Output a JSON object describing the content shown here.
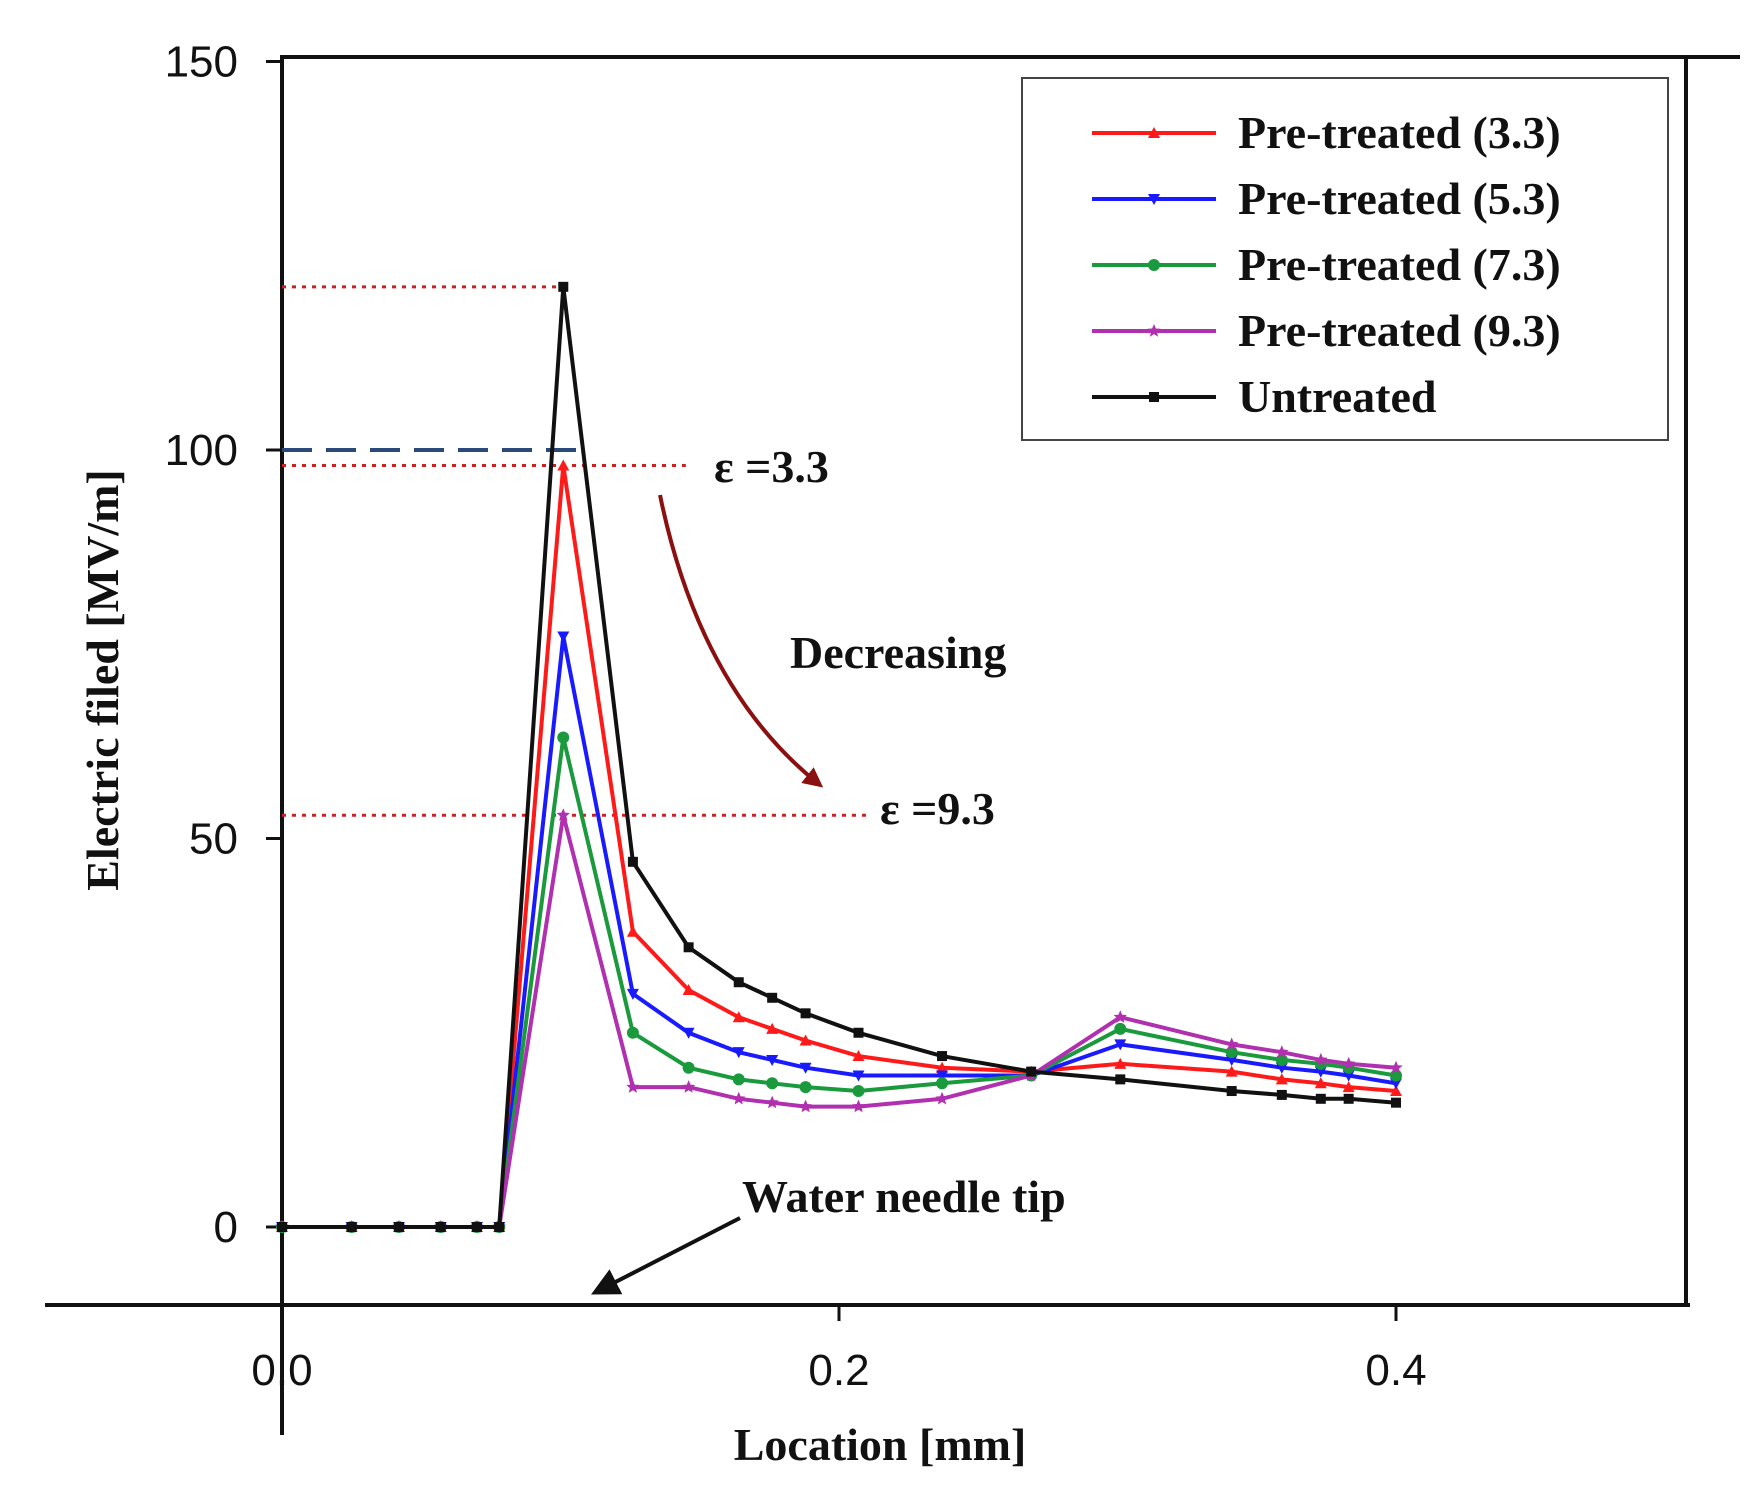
{
  "chart_data": {
    "type": "line",
    "xlabel": "Location [mm]",
    "ylabel": "Electric filed [MV/m]",
    "xlim": [
      -0.025,
      0.5
    ],
    "ylim": [
      -10,
      150
    ],
    "xticks": [
      0.0,
      0.2,
      0.4
    ],
    "xtick_labels": [
      "0.0",
      "0.2",
      "0.4"
    ],
    "yticks": [
      0,
      50,
      100,
      150
    ],
    "ytick_labels": [
      "0",
      "50",
      "100",
      "150"
    ],
    "grid": false,
    "legend_position": "top-right",
    "x": [
      0.0,
      0.025,
      0.042,
      0.057,
      0.07,
      0.078,
      0.101,
      0.126,
      0.146,
      0.164,
      0.176,
      0.188,
      0.207,
      0.237,
      0.269,
      0.301,
      0.341,
      0.359,
      0.373,
      0.383,
      0.4
    ],
    "series": [
      {
        "name": "Pre-treated (3.3)",
        "color": "#ff1a1a",
        "marker": "triangle-up",
        "values": [
          0,
          0,
          0,
          0,
          0,
          0,
          98,
          38,
          30.5,
          27,
          25.5,
          24,
          22,
          20.5,
          20,
          21,
          20,
          19,
          18.5,
          18,
          17.5
        ]
      },
      {
        "name": "Pre-treated (5.3)",
        "color": "#1a1aff",
        "marker": "triangle-down",
        "values": [
          0,
          0,
          0,
          0,
          0,
          0,
          76,
          30,
          25,
          22.5,
          21.5,
          20.5,
          19.5,
          19.5,
          19.5,
          23.5,
          21.5,
          20.5,
          20,
          19.5,
          18.5
        ]
      },
      {
        "name": "Pre-treated (7.3)",
        "color": "#1a9a3c",
        "marker": "circle",
        "values": [
          0,
          0,
          0,
          0,
          0,
          0,
          63,
          25,
          20.5,
          19,
          18.5,
          18,
          17.5,
          18.5,
          19.5,
          25.5,
          22.5,
          21.5,
          21,
          20.5,
          19.5
        ]
      },
      {
        "name": "Pre-treated (9.3)",
        "color": "#b030b0",
        "marker": "star",
        "values": [
          0,
          0,
          0,
          0,
          0,
          0,
          53,
          18,
          18,
          16.5,
          16,
          15.5,
          15.5,
          16.5,
          19.5,
          27,
          23.5,
          22.5,
          21.5,
          21,
          20.5
        ]
      },
      {
        "name": "Untreated",
        "color": "#111111",
        "marker": "square",
        "values": [
          0,
          0,
          0,
          0,
          0,
          0,
          121,
          47,
          36,
          31.5,
          29.5,
          27.5,
          25,
          22,
          20,
          19,
          17.5,
          17,
          16.5,
          16.5,
          16
        ]
      }
    ],
    "reference_lines": [
      {
        "y": 121,
        "color": "#cc2222",
        "style": "dotted",
        "x_end": 0.101
      },
      {
        "y": 100,
        "color": "#2a4a7a",
        "style": "dashed",
        "x_end": 0.11
      },
      {
        "y": 98,
        "color": "#cc2222",
        "style": "dotted",
        "x_end": 0.145
      },
      {
        "y": 53,
        "color": "#cc2222",
        "style": "dotted",
        "x_end": 0.21
      }
    ],
    "annotations": [
      {
        "text": "ε =3.3"
      },
      {
        "text": "Decreasing"
      },
      {
        "text": "ε =9.3"
      },
      {
        "text": "Water needle tip"
      }
    ]
  }
}
